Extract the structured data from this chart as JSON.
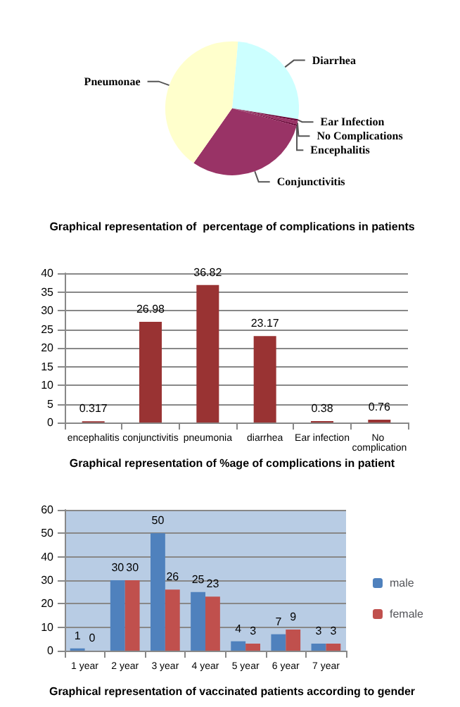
{
  "chart_data": [
    {
      "type": "pie",
      "title": "Graphical representation of  percentage of complications in patients",
      "categories": [
        "Diarrhea",
        "Ear Infection",
        "No Complications",
        "Encephalitis",
        "Conjunctivitis",
        "Pneumonae"
      ],
      "values": [
        26.2,
        0.43,
        0.86,
        0.36,
        30.51,
        41.64
      ],
      "colors": [
        "#ccffff",
        "#660033",
        "#993366",
        "#660033",
        "#993366",
        "#ffffcc"
      ]
    },
    {
      "type": "bar",
      "title": "Graphical representation of %age of complications in patient",
      "categories": [
        "encephalitis",
        "conjunctivitis",
        "pneumonia",
        "diarrhea",
        "Ear infection",
        "No complication"
      ],
      "values": [
        0.317,
        26.98,
        36.82,
        23.17,
        0.38,
        0.76
      ],
      "color": "#993333",
      "ylim": [
        0,
        40
      ],
      "yticks": [
        0,
        5,
        10,
        15,
        20,
        25,
        30,
        35,
        40
      ],
      "grid": "y",
      "data_labels": true
    },
    {
      "type": "bar",
      "title": "Graphical representation of vaccinated patients according to gender",
      "categories": [
        "1 year",
        "2 year",
        "3 year",
        "4 year",
        "5 year",
        "6 year",
        "7 year"
      ],
      "series": [
        {
          "name": "male",
          "color": "#4f81bd",
          "values": [
            1,
            30,
            50,
            25,
            4,
            7,
            3
          ]
        },
        {
          "name": "female",
          "color": "#c0504d",
          "values": [
            0,
            30,
            26,
            23,
            3,
            9,
            3
          ]
        }
      ],
      "ylim": [
        0,
        60
      ],
      "yticks": [
        0,
        10,
        20,
        30,
        40,
        50,
        60
      ],
      "grid": "y",
      "data_labels": true,
      "legend": "right"
    }
  ]
}
